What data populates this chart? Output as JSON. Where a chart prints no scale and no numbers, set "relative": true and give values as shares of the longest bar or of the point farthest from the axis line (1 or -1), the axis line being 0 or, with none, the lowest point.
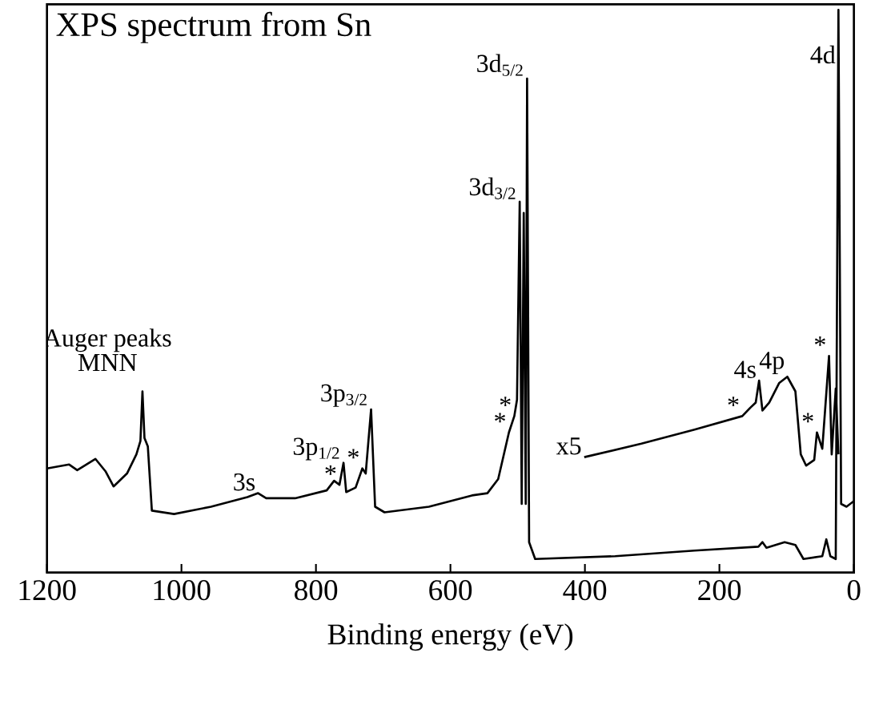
{
  "chart_data": {
    "type": "line",
    "title": "XPS spectrum from Sn",
    "xlabel": "Binding energy (eV)",
    "relative": true,
    "xlim": [
      1200,
      0
    ],
    "xticks": [
      1200,
      1000,
      800,
      600,
      400,
      200,
      0
    ],
    "marker": "none",
    "line_style": "solid",
    "grid": false,
    "series": [
      {
        "color": "#000000",
        "x": [
          1200,
          1167,
          1155,
          1128,
          1113,
          1101,
          1081,
          1067,
          1061,
          1058,
          1055,
          1050,
          1044,
          1011,
          956,
          902,
          886,
          874,
          831,
          784,
          773,
          765,
          759,
          755,
          741,
          731,
          726,
          718,
          712,
          698,
          632,
          568,
          545,
          529,
          513,
          505,
          501,
          497,
          494,
          491,
          488,
          486,
          483,
          474,
          355,
          237,
          142,
          136,
          130,
          103,
          87,
          75,
          47,
          41,
          35,
          27,
          23,
          19,
          11,
          0
        ],
        "values": [
          0.185,
          0.192,
          0.182,
          0.202,
          0.18,
          0.153,
          0.176,
          0.21,
          0.234,
          0.322,
          0.239,
          0.224,
          0.11,
          0.104,
          0.117,
          0.134,
          0.141,
          0.132,
          0.132,
          0.146,
          0.163,
          0.156,
          0.195,
          0.143,
          0.151,
          0.185,
          0.176,
          0.29,
          0.117,
          0.107,
          0.117,
          0.137,
          0.141,
          0.166,
          0.249,
          0.278,
          0.307,
          0.659,
          0.122,
          0.639,
          0.122,
          0.878,
          0.054,
          0.024,
          0.029,
          0.039,
          0.046,
          0.054,
          0.044,
          0.054,
          0.049,
          0.024,
          0.029,
          0.059,
          0.029,
          0.024,
          1.0,
          0.122,
          0.117,
          0.127
        ]
      },
      {
        "color": "#000000",
        "x": [
          401,
          316,
          237,
          166,
          154,
          146,
          141,
          136,
          126,
          111,
          99,
          87,
          79,
          71,
          59,
          55,
          47,
          37,
          33,
          27,
          23
        ],
        "values": [
          0.205,
          0.229,
          0.254,
          0.278,
          0.293,
          0.302,
          0.341,
          0.288,
          0.302,
          0.337,
          0.348,
          0.322,
          0.21,
          0.19,
          0.2,
          0.249,
          0.22,
          0.385,
          0.21,
          0.327,
          0.21
        ]
      }
    ],
    "annotations": [
      "Auger peaks",
      "MNN",
      {
        "text": "3s",
        "x": 886,
        "y": 0.141
      },
      {
        "text": "3p$_{1/2}$",
        "x": 759,
        "y": 0.195
      },
      {
        "text": "3p$_{3/2}$",
        "x": 718,
        "y": 0.29
      },
      {
        "text": "3d$_{3/2}$",
        "x": 497,
        "y": 0.659
      },
      {
        "text": "3d$_{5/2}$",
        "x": 486,
        "y": 0.878
      },
      {
        "text": "4d",
        "x": 23.4,
        "y": 0.9
      },
      {
        "text": "4p",
        "x": 99,
        "y": 0.348
      },
      {
        "text": "4s",
        "x": 141,
        "y": 0.341
      },
      {
        "text": "x5",
        "x": 401,
        "y": 0.205
      },
      {
        "text": "*",
        "x": 765,
        "y": 0.156
      },
      {
        "text": "*",
        "x": 731,
        "y": 0.185
      },
      {
        "text": "*",
        "x": 505,
        "y": 0.278
      },
      {
        "text": "*",
        "x": 513,
        "y": 0.249
      },
      {
        "text": "*",
        "x": 166,
        "y": 0.278
      },
      {
        "text": "*",
        "x": 37,
        "y": 0.385
      },
      {
        "text": "*",
        "x": 55,
        "y": 0.249
      }
    ]
  }
}
